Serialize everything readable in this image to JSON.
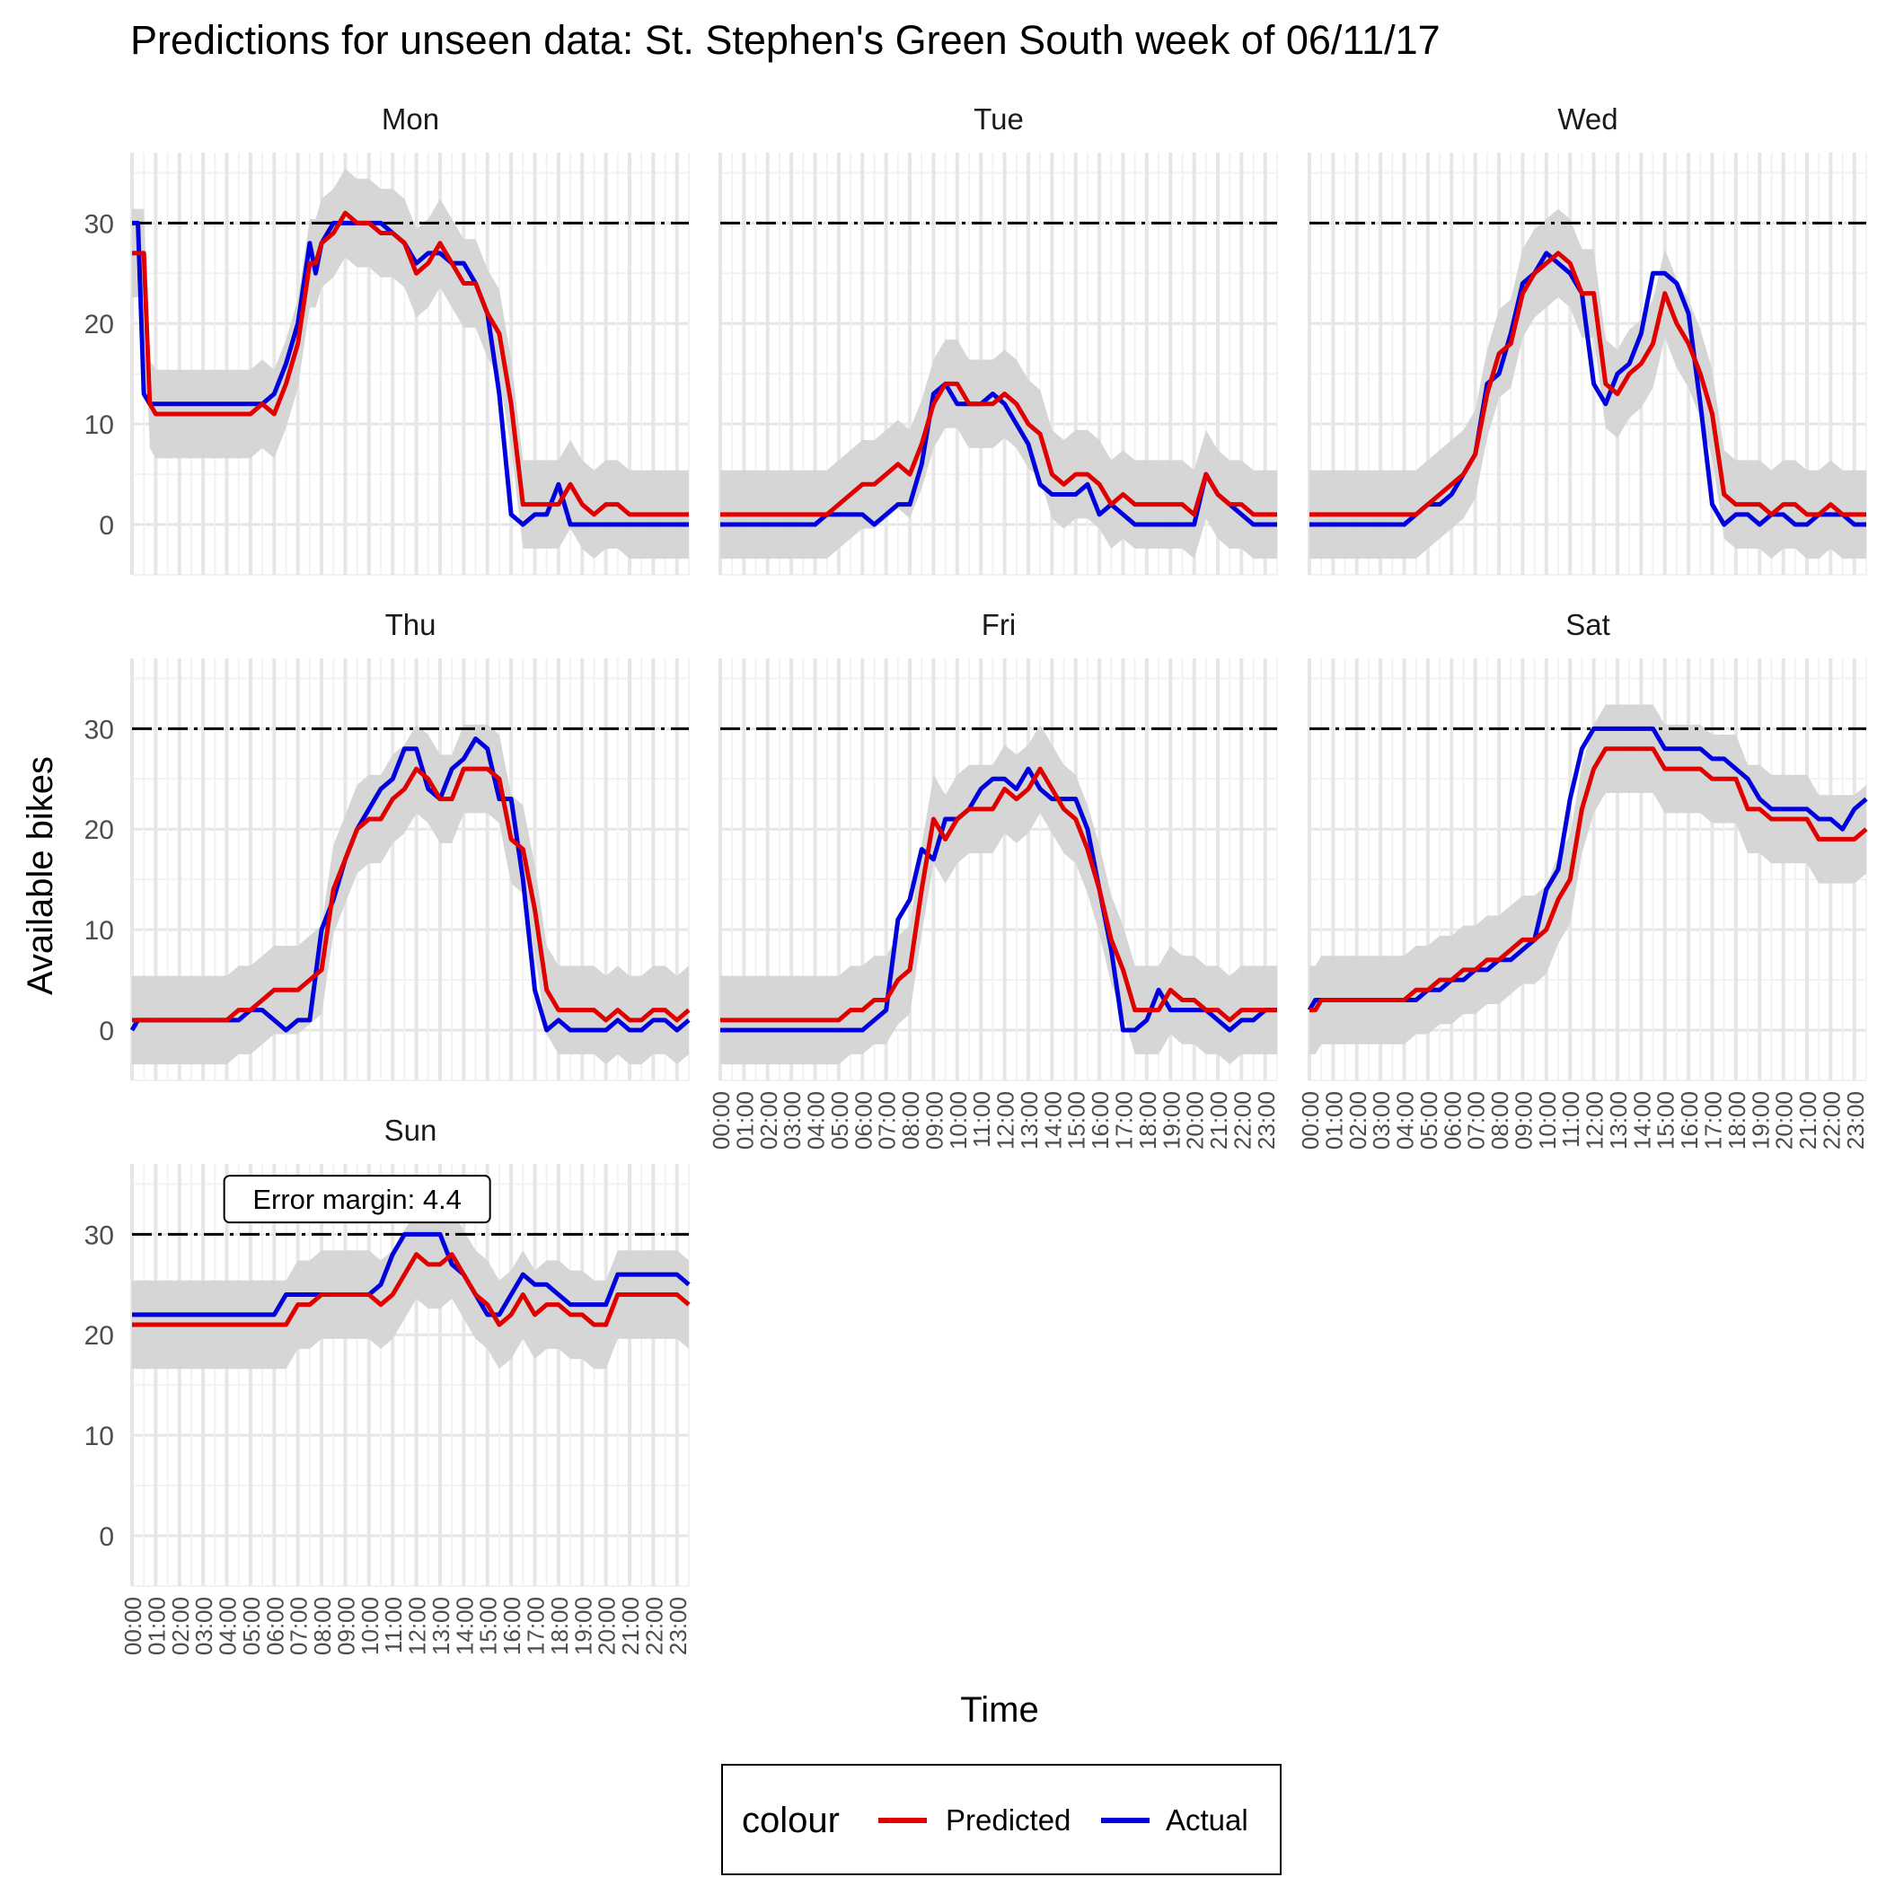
{
  "chart_data": {
    "type": "line",
    "title": "Predictions for unseen data: St. Stephen's Green South week of 06/11/17",
    "xlabel": "Time",
    "ylabel": "Available bikes",
    "x_tick_labels": [
      "00:00",
      "01:00",
      "02:00",
      "03:00",
      "04:00",
      "05:00",
      "06:00",
      "07:00",
      "08:00",
      "09:00",
      "10:00",
      "11:00",
      "12:00",
      "13:00",
      "14:00",
      "15:00",
      "16:00",
      "17:00",
      "18:00",
      "19:00",
      "20:00",
      "21:00",
      "22:00",
      "23:00"
    ],
    "y_ticks": [
      0,
      10,
      20,
      30
    ],
    "ylim": [
      -5,
      37
    ],
    "xlim": [
      0,
      23.5
    ],
    "capacity_line": 30,
    "error_band": 4.4,
    "annotation": "Error margin: 4.4",
    "legend": {
      "title": "colour",
      "position": "bottom",
      "entries": [
        "Predicted",
        "Actual"
      ]
    },
    "colors": {
      "Predicted": "#e00000",
      "Actual": "#0000dd",
      "band": "#d4d4d4"
    },
    "panels": [
      {
        "name": "Mon",
        "x": [
          0,
          0.25,
          0.5,
          0.75,
          1,
          1.5,
          2,
          3,
          4,
          5,
          5.5,
          6,
          6.5,
          7,
          7.5,
          7.75,
          8,
          8.5,
          9,
          9.5,
          10,
          10.5,
          11,
          11.5,
          12,
          12.5,
          13,
          13.5,
          14,
          14.5,
          15,
          15.5,
          16,
          16.5,
          17,
          17.5,
          18,
          18.5,
          19,
          19.5,
          20,
          20.5,
          21,
          21.5,
          22,
          22.5,
          23,
          23.5
        ],
        "actual": [
          30,
          30,
          13,
          12,
          12,
          12,
          12,
          12,
          12,
          12,
          12,
          13,
          16,
          20,
          28,
          25,
          28,
          30,
          30,
          30,
          30,
          30,
          29,
          28,
          26,
          27,
          27,
          26,
          26,
          24,
          21,
          13,
          1,
          0,
          1,
          1,
          4,
          0,
          0,
          0,
          0,
          0,
          0,
          0,
          0,
          0,
          0,
          0
        ],
        "predicted": [
          27,
          27,
          27,
          12,
          11,
          11,
          11,
          11,
          11,
          11,
          12,
          11,
          14,
          18,
          26,
          26,
          28,
          29,
          31,
          30,
          30,
          29,
          29,
          28,
          25,
          26,
          28,
          26,
          24,
          24,
          21,
          19,
          12,
          2,
          2,
          2,
          2,
          4,
          2,
          1,
          2,
          2,
          1,
          1,
          1,
          1,
          1,
          1
        ]
      },
      {
        "name": "Tue",
        "x": [
          0,
          1,
          2,
          3,
          4,
          4.5,
          5,
          5.5,
          6,
          6.5,
          7,
          7.5,
          8,
          8.5,
          9,
          9.5,
          10,
          10.5,
          11,
          11.5,
          12,
          12.5,
          13,
          13.5,
          14,
          14.5,
          15,
          15.5,
          16,
          16.5,
          17,
          17.5,
          18,
          18.5,
          19,
          19.5,
          20,
          20.5,
          21,
          21.5,
          22,
          22.5,
          23,
          23.5
        ],
        "actual": [
          0,
          0,
          0,
          0,
          0,
          1,
          1,
          1,
          1,
          0,
          1,
          2,
          2,
          6,
          13,
          14,
          12,
          12,
          12,
          13,
          12,
          10,
          8,
          4,
          3,
          3,
          3,
          4,
          1,
          2,
          1,
          0,
          0,
          0,
          0,
          0,
          0,
          5,
          3,
          2,
          1,
          0,
          0,
          0
        ],
        "predicted": [
          1,
          1,
          1,
          1,
          1,
          1,
          2,
          3,
          4,
          4,
          5,
          6,
          5,
          8,
          12,
          14,
          14,
          12,
          12,
          12,
          13,
          12,
          10,
          9,
          5,
          4,
          5,
          5,
          4,
          2,
          3,
          2,
          2,
          2,
          2,
          2,
          1,
          5,
          3,
          2,
          2,
          1,
          1,
          1
        ]
      },
      {
        "name": "Wed",
        "x": [
          0,
          1,
          2,
          3,
          4,
          4.5,
          5,
          5.5,
          6,
          6.5,
          7,
          7.5,
          8,
          8.5,
          9,
          9.5,
          10,
          10.5,
          11,
          11.5,
          12,
          12.5,
          13,
          13.5,
          14,
          14.5,
          15,
          15.5,
          16,
          16.5,
          17,
          17.5,
          18,
          18.5,
          19,
          19.5,
          20,
          20.5,
          21,
          21.5,
          22,
          22.5,
          23,
          23.5
        ],
        "actual": [
          0,
          0,
          0,
          0,
          0,
          1,
          2,
          2,
          3,
          5,
          7,
          14,
          15,
          19,
          24,
          25,
          27,
          26,
          25,
          23,
          14,
          12,
          15,
          16,
          19,
          25,
          25,
          24,
          21,
          12,
          2,
          0,
          1,
          1,
          0,
          1,
          1,
          0,
          0,
          1,
          1,
          1,
          0,
          0
        ],
        "predicted": [
          1,
          1,
          1,
          1,
          1,
          1,
          2,
          3,
          4,
          5,
          7,
          13,
          17,
          18,
          23,
          25,
          26,
          27,
          26,
          23,
          23,
          14,
          13,
          15,
          16,
          18,
          23,
          20,
          18,
          15,
          11,
          3,
          2,
          2,
          2,
          1,
          2,
          2,
          1,
          1,
          2,
          1,
          1,
          1
        ]
      },
      {
        "name": "Thu",
        "x": [
          0,
          0.25,
          0.5,
          1,
          2,
          3,
          4,
          4.5,
          5,
          5.5,
          6,
          6.5,
          7,
          7.5,
          8,
          8.5,
          9,
          9.5,
          10,
          10.5,
          11,
          11.5,
          12,
          12.5,
          13,
          13.5,
          14,
          14.5,
          15,
          15.5,
          16,
          16.5,
          17,
          17.5,
          18,
          18.5,
          19,
          19.5,
          20,
          20.5,
          21,
          21.5,
          22,
          22.5,
          23,
          23.5
        ],
        "actual": [
          0,
          1,
          1,
          1,
          1,
          1,
          1,
          1,
          2,
          2,
          1,
          0,
          1,
          1,
          10,
          13,
          17,
          20,
          22,
          24,
          25,
          28,
          28,
          24,
          23,
          26,
          27,
          29,
          28,
          23,
          23,
          15,
          4,
          0,
          1,
          0,
          0,
          0,
          0,
          1,
          0,
          0,
          1,
          1,
          0,
          1
        ],
        "predicted": [
          1,
          1,
          1,
          1,
          1,
          1,
          1,
          2,
          2,
          3,
          4,
          4,
          4,
          5,
          6,
          14,
          17,
          20,
          21,
          21,
          23,
          24,
          26,
          25,
          23,
          23,
          26,
          26,
          26,
          25,
          19,
          18,
          12,
          4,
          2,
          2,
          2,
          2,
          1,
          2,
          1,
          1,
          2,
          2,
          1,
          2
        ]
      },
      {
        "name": "Fri",
        "x": [
          0,
          1,
          2,
          3,
          4,
          4.5,
          5,
          5.5,
          6,
          6.5,
          7,
          7.5,
          8,
          8.5,
          9,
          9.5,
          10,
          10.5,
          11,
          11.5,
          12,
          12.5,
          13,
          13.5,
          14,
          14.5,
          15,
          15.5,
          16,
          16.5,
          17,
          17.5,
          18,
          18.5,
          19,
          19.5,
          20,
          20.5,
          21,
          21.5,
          22,
          22.5,
          23,
          23.5
        ],
        "actual": [
          0,
          0,
          0,
          0,
          0,
          0,
          0,
          0,
          0,
          1,
          2,
          11,
          13,
          18,
          17,
          21,
          21,
          22,
          24,
          25,
          25,
          24,
          26,
          24,
          23,
          23,
          23,
          20,
          14,
          8,
          0,
          0,
          1,
          4,
          2,
          2,
          2,
          2,
          1,
          0,
          1,
          1,
          2,
          2
        ],
        "predicted": [
          1,
          1,
          1,
          1,
          1,
          1,
          1,
          2,
          2,
          3,
          3,
          5,
          6,
          14,
          21,
          19,
          21,
          22,
          22,
          22,
          24,
          23,
          24,
          26,
          24,
          22,
          21,
          18,
          14,
          9,
          6,
          2,
          2,
          2,
          4,
          3,
          3,
          2,
          2,
          1,
          2,
          2,
          2,
          2
        ]
      },
      {
        "name": "Sat",
        "x": [
          0,
          0.25,
          0.5,
          1,
          2,
          3,
          4,
          4.5,
          5,
          5.5,
          6,
          6.5,
          7,
          7.5,
          8,
          8.5,
          9,
          9.5,
          10,
          10.5,
          11,
          11.5,
          12,
          12.5,
          13,
          13.5,
          14,
          14.5,
          15,
          15.5,
          16,
          16.5,
          17,
          17.5,
          18,
          18.5,
          19,
          19.5,
          20,
          20.5,
          21,
          21.5,
          22,
          22.5,
          23,
          23.5
        ],
        "actual": [
          2,
          3,
          3,
          3,
          3,
          3,
          3,
          3,
          4,
          4,
          5,
          5,
          6,
          6,
          7,
          7,
          8,
          9,
          14,
          16,
          23,
          28,
          30,
          30,
          30,
          30,
          30,
          30,
          28,
          28,
          28,
          28,
          27,
          27,
          26,
          25,
          23,
          22,
          22,
          22,
          22,
          21,
          21,
          20,
          22,
          23
        ],
        "predicted": [
          2,
          2,
          3,
          3,
          3,
          3,
          3,
          4,
          4,
          5,
          5,
          6,
          6,
          7,
          7,
          8,
          9,
          9,
          10,
          13,
          15,
          22,
          26,
          28,
          28,
          28,
          28,
          28,
          26,
          26,
          26,
          26,
          25,
          25,
          25,
          22,
          22,
          21,
          21,
          21,
          21,
          19,
          19,
          19,
          19,
          20
        ]
      },
      {
        "name": "Sun",
        "x": [
          0,
          1,
          2,
          3,
          4,
          5,
          5.5,
          6,
          6.5,
          7,
          7.5,
          8,
          8.5,
          9,
          9.5,
          10,
          10.5,
          11,
          11.5,
          12,
          12.5,
          13,
          13.5,
          14,
          14.5,
          15,
          15.5,
          16,
          16.5,
          17,
          17.5,
          18,
          18.5,
          19,
          19.5,
          20,
          20.5,
          21,
          21.5,
          22,
          22.5,
          23,
          23.5
        ],
        "actual": [
          22,
          22,
          22,
          22,
          22,
          22,
          22,
          22,
          24,
          24,
          24,
          24,
          24,
          24,
          24,
          24,
          25,
          28,
          30,
          30,
          30,
          30,
          27,
          26,
          24,
          22,
          22,
          24,
          26,
          25,
          25,
          24,
          23,
          23,
          23,
          23,
          26,
          26,
          26,
          26,
          26,
          26,
          25
        ],
        "predicted": [
          21,
          21,
          21,
          21,
          21,
          21,
          21,
          21,
          21,
          23,
          23,
          24,
          24,
          24,
          24,
          24,
          23,
          24,
          26,
          28,
          27,
          27,
          28,
          26,
          24,
          23,
          21,
          22,
          24,
          22,
          23,
          23,
          22,
          22,
          21,
          21,
          24,
          24,
          24,
          24,
          24,
          24,
          23
        ]
      }
    ]
  }
}
